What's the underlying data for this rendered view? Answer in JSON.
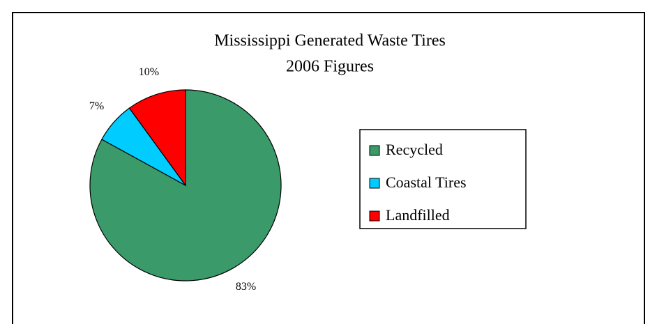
{
  "chart_data": {
    "type": "pie",
    "title": [
      "Mississippi Generated Waste Tires",
      "2006 Figures"
    ],
    "categories": [
      "Recycled",
      "Coastal Tires",
      "Landfilled"
    ],
    "values": [
      83,
      7,
      10
    ],
    "value_labels": [
      "83%",
      "7%",
      "10%"
    ],
    "colors": [
      "#3a9a6a",
      "#00ccff",
      "#ff0000"
    ],
    "legend": "right"
  }
}
